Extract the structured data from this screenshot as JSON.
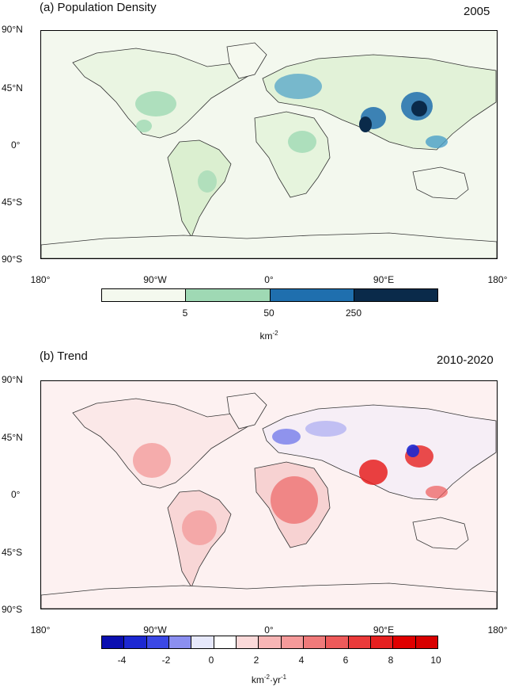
{
  "panel_a": {
    "title": "(a) Population Density",
    "year": "2005",
    "lat_labels": [
      "90°N",
      "45°N",
      "0°",
      "45°S",
      "90°S"
    ],
    "lon_labels": [
      "180°",
      "90°W",
      "0°",
      "90°E",
      "180°"
    ],
    "colorbar": {
      "colors": [
        "#f4f9ee",
        "#9fd9b4",
        "#1f6fae",
        "#0a2a4a"
      ],
      "ticks": [
        "5",
        "50",
        "250"
      ],
      "unit_base": "km",
      "unit_sup": "-2"
    }
  },
  "panel_b": {
    "title": "(b) Trend",
    "year": "2010-2020",
    "lat_labels": [
      "90°N",
      "45°N",
      "0°",
      "45°S",
      "90°S"
    ],
    "lon_labels": [
      "180°",
      "90°W",
      "0°",
      "90°E",
      "180°"
    ],
    "colorbar": {
      "colors": [
        "#0b0fb0",
        "#1c28d2",
        "#3b48e6",
        "#8b8ff0",
        "#e6e8fb",
        "#ffffff",
        "#fbd9d9",
        "#f7b5b5",
        "#f59a9a",
        "#f07a7a",
        "#ee5a5a",
        "#ea3a3a",
        "#e62020",
        "#e00000",
        "#d80000"
      ],
      "ticks": [
        "-4",
        "-2",
        "0",
        "2",
        "4",
        "6",
        "8",
        "10"
      ],
      "unit_base1": "km",
      "unit_sup1": "-2",
      "unit_mid": "·yr",
      "unit_sup2": "-1"
    }
  }
}
